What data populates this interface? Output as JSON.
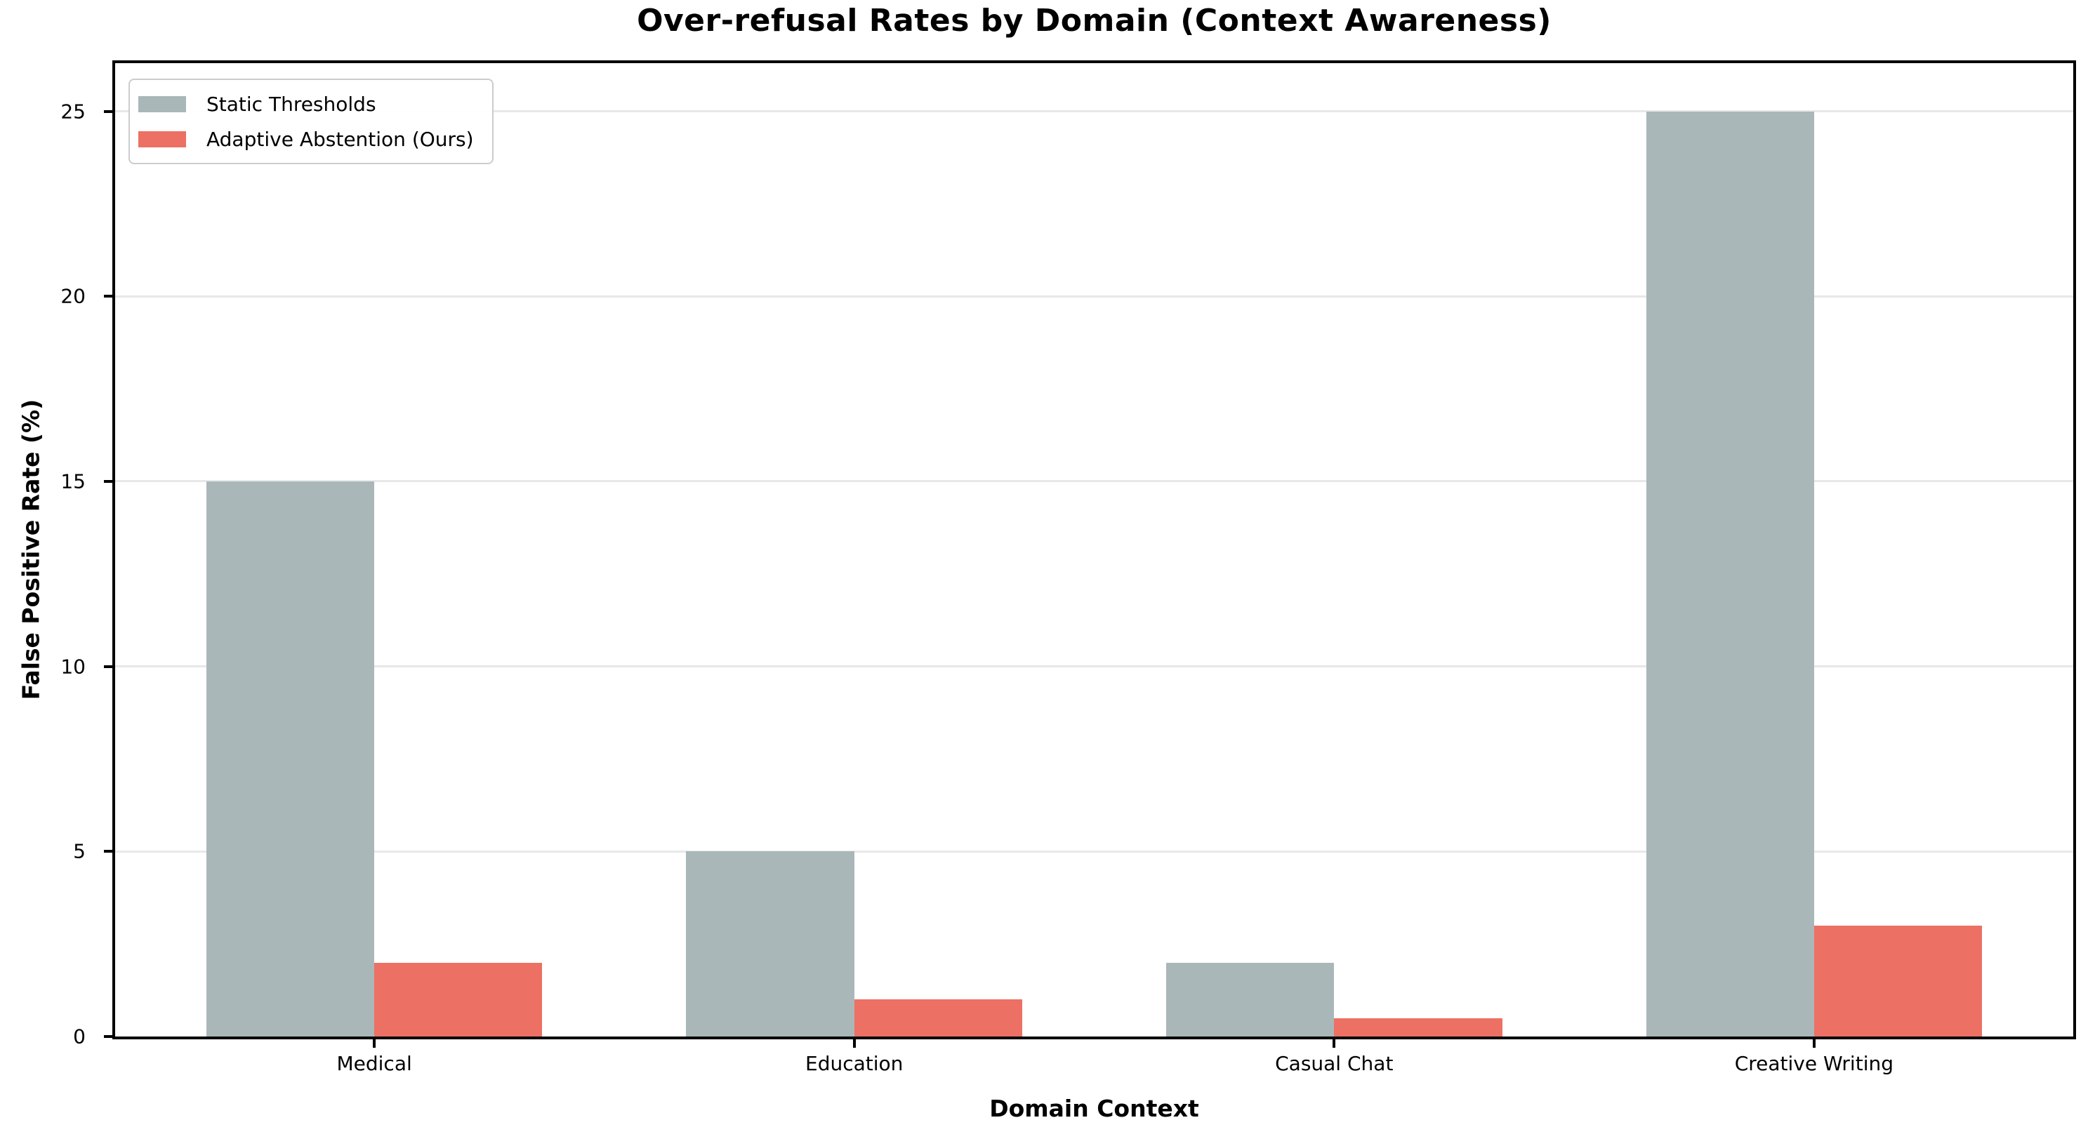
{
  "chart_data": {
    "type": "bar",
    "title": "Over-refusal Rates by Domain (Context Awareness)",
    "xlabel": "Domain Context",
    "ylabel": "False Positive Rate (%)",
    "categories": [
      "Medical",
      "Education",
      "Casual Chat",
      "Creative Writing"
    ],
    "series": [
      {
        "name": "Static Thresholds",
        "color": "#aab7b8",
        "values": [
          15,
          5,
          2,
          25
        ]
      },
      {
        "name": "Adaptive Abstention (Ours)",
        "color": "#ec7063",
        "values": [
          2,
          1,
          0.5,
          3
        ]
      }
    ],
    "ylim": [
      0,
      26.3
    ],
    "yticks": [
      0,
      5,
      10,
      15,
      20,
      25
    ],
    "grid": "horizontal",
    "grid_color": "#e8e8e8",
    "legend_position": "upper-left",
    "background": "#ffffff",
    "spine_color": "#000000"
  }
}
